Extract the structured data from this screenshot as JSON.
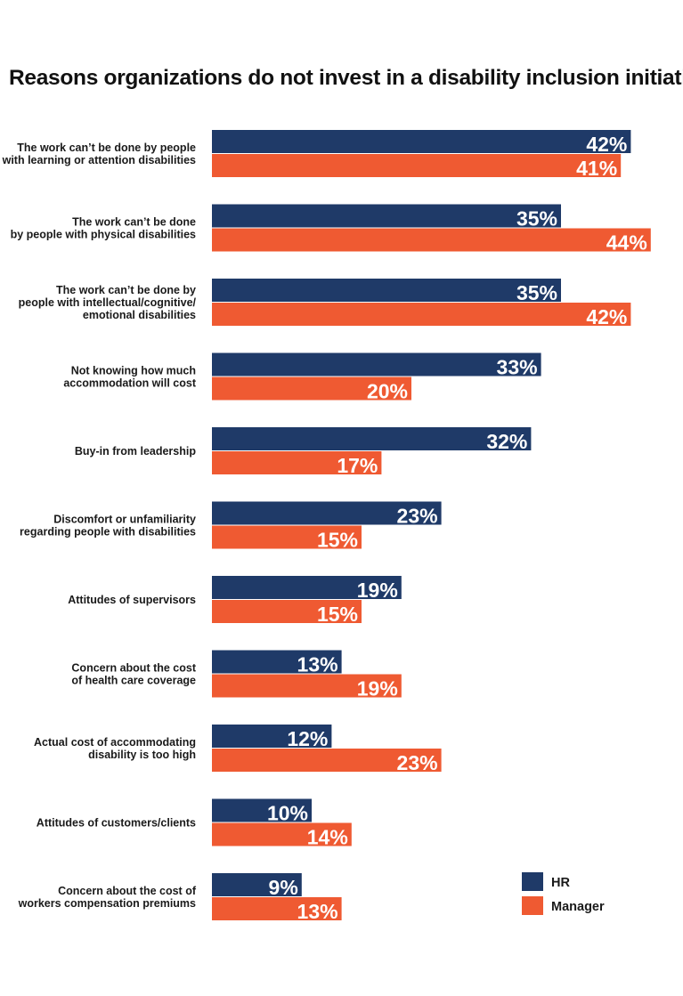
{
  "chart_data": {
    "type": "bar",
    "orientation": "horizontal",
    "title": "Reasons organizations do not invest in a disability inclusion initiative",
    "categories": [
      "The work can’t be done by people\nwith learning or attention disabilities",
      "The work can’t be done\nby people with physical disabilities",
      "The work can’t be done by\npeople with intellectual/cognitive/\nemotional disabilities",
      "Not knowing how much\naccommodation will cost",
      "Buy-in from leadership",
      "Discomfort or unfamiliarity\nregarding people with disabilities",
      "Attitudes of supervisors",
      "Concern about the cost\nof health care coverage",
      "Actual cost of accommodating\ndisability is too high",
      "Attitudes of customers/clients",
      "Concern about the cost of\nworkers compensation premiums"
    ],
    "series": [
      {
        "name": "HR",
        "color": "#1f3a68",
        "values": [
          42,
          35,
          35,
          33,
          32,
          23,
          19,
          13,
          12,
          10,
          9
        ],
        "labels": [
          "42%",
          "35%",
          "35%",
          "33%",
          "32%",
          "23%",
          "19%",
          "13%",
          "12%",
          "10%",
          "9%"
        ]
      },
      {
        "name": "Manager",
        "color": "#ef5a32",
        "values": [
          41,
          44,
          42,
          20,
          17,
          15,
          15,
          19,
          23,
          14,
          13
        ],
        "labels": [
          "41%",
          "44%",
          "42%",
          "20%",
          "17%",
          "15%",
          "15%",
          "19%",
          "23%",
          "14%",
          "13%"
        ]
      }
    ],
    "unit": "%",
    "legend_position": "bottom-right",
    "grid": false
  }
}
